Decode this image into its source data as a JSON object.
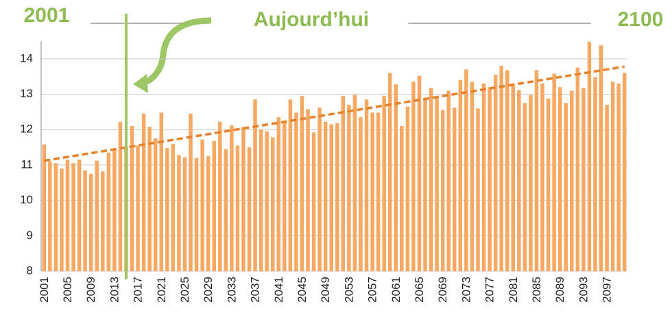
{
  "chart_data": {
    "type": "bar",
    "annotations": [
      "2001",
      "Aujourd’hui",
      "2100"
    ],
    "categories": [
      "2001",
      null,
      null,
      null,
      "2005",
      null,
      null,
      null,
      "2009",
      null,
      null,
      null,
      "2013",
      null,
      null,
      null,
      "2017",
      null,
      null,
      null,
      "2021",
      null,
      null,
      null,
      "2025",
      null,
      null,
      null,
      "2029",
      null,
      null,
      null,
      "2033",
      null,
      null,
      null,
      "2037",
      null,
      null,
      null,
      "2041",
      null,
      null,
      null,
      "2045",
      null,
      null,
      null,
      "2049",
      null,
      null,
      null,
      "2053",
      null,
      null,
      null,
      "2057",
      null,
      null,
      null,
      "2061",
      null,
      null,
      null,
      "2065",
      null,
      null,
      null,
      "2069",
      null,
      null,
      null,
      "2073",
      null,
      null,
      null,
      "2077",
      null,
      null,
      null,
      "2081",
      null,
      null,
      null,
      "2085",
      null,
      null,
      null,
      "2089",
      null,
      null,
      null,
      "2093",
      null,
      null,
      null,
      "2097",
      null,
      null,
      null
    ],
    "values": [
      11.58,
      11.1,
      11.05,
      10.9,
      11.15,
      11.05,
      11.15,
      10.85,
      10.75,
      11.12,
      10.82,
      11.35,
      11.45,
      12.22,
      11.5,
      12.1,
      11.55,
      12.45,
      12.08,
      11.75,
      12.48,
      11.48,
      11.6,
      11.28,
      11.22,
      12.45,
      11.2,
      11.72,
      11.25,
      11.68,
      12.22,
      11.45,
      12.12,
      11.55,
      12.08,
      11.5,
      12.85,
      12.0,
      11.95,
      11.78,
      12.35,
      12.2,
      12.85,
      12.48,
      12.95,
      12.58,
      11.92,
      12.62,
      12.22,
      12.15,
      12.18,
      12.95,
      12.7,
      12.98,
      12.35,
      12.85,
      12.48,
      12.48,
      12.95,
      13.6,
      13.28,
      12.1,
      12.65,
      13.35,
      13.52,
      12.85,
      13.18,
      12.9,
      12.55,
      13.1,
      12.62,
      13.4,
      13.7,
      13.35,
      12.6,
      13.3,
      13.2,
      13.55,
      13.8,
      13.68,
      13.25,
      13.12,
      12.75,
      12.98,
      13.68,
      13.3,
      12.88,
      13.58,
      13.2,
      12.75,
      13.1,
      13.75,
      13.18,
      14.48,
      13.48,
      14.38,
      12.7,
      13.35,
      13.3,
      13.6
    ],
    "color": "#f7a862",
    "trendline": [
      11.12,
      13.78
    ],
    "trend_color": "#e8822a",
    "marker_category_index": 14,
    "marker_color": "#9dc665",
    "ylim": [
      8,
      14.5
    ],
    "yticks": [
      8,
      9,
      10,
      11,
      12,
      13,
      14
    ],
    "grid": true
  }
}
